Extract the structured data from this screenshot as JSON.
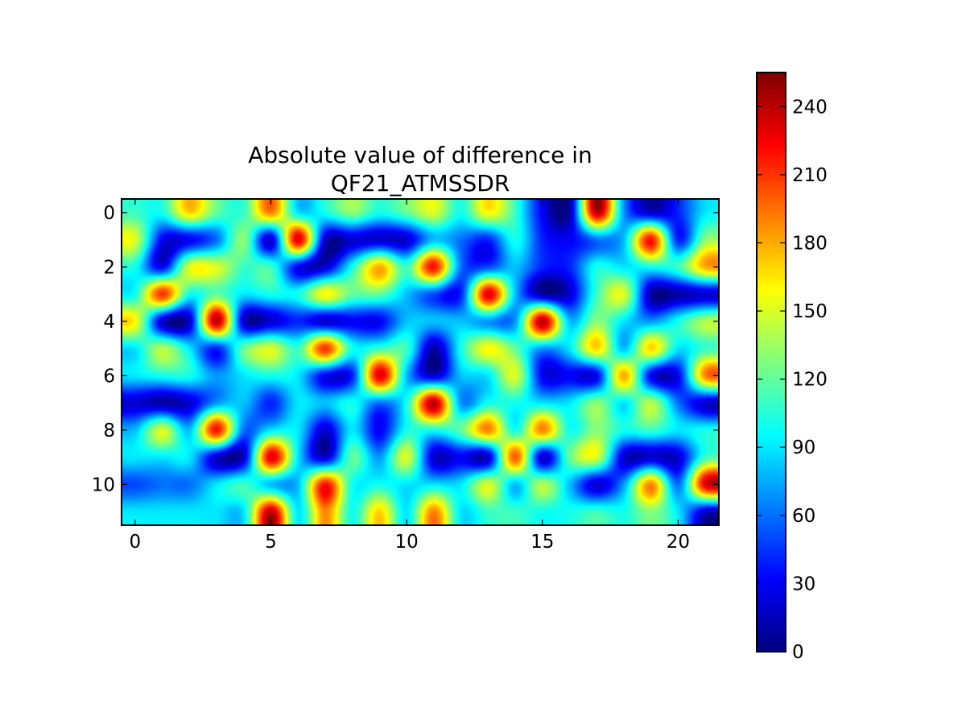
{
  "chart_data": {
    "type": "heatmap",
    "title_lines": [
      "Absolute value of difference in",
      "QF21_ATMSSDR"
    ],
    "xlabel": "",
    "ylabel": "",
    "xlim": [
      -0.5,
      21.5
    ],
    "ylim": [
      11.5,
      -0.5
    ],
    "x_ticks": [
      0,
      5,
      10,
      15,
      20
    ],
    "y_ticks": [
      0,
      2,
      4,
      6,
      8,
      10
    ],
    "colormap": "jet",
    "interpolation": "bicubic",
    "colorbar": {
      "range": [
        0,
        255
      ],
      "ticks": [
        0,
        30,
        60,
        90,
        120,
        150,
        180,
        210,
        240
      ]
    },
    "rows": 12,
    "cols": 22,
    "values": [
      [
        110,
        100,
        170,
        120,
        110,
        190,
        90,
        100,
        130,
        100,
        120,
        150,
        100,
        160,
        110,
        30,
        10,
        240,
        70,
        20,
        40,
        90
      ],
      [
        150,
        30,
        30,
        60,
        130,
        20,
        230,
        20,
        20,
        20,
        20,
        80,
        60,
        40,
        100,
        40,
        30,
        60,
        80,
        220,
        40,
        130
      ],
      [
        100,
        30,
        150,
        150,
        110,
        110,
        30,
        20,
        100,
        180,
        110,
        220,
        60,
        50,
        80,
        40,
        40,
        100,
        90,
        100,
        110,
        180
      ],
      [
        100,
        210,
        100,
        120,
        90,
        100,
        100,
        160,
        120,
        120,
        80,
        50,
        40,
        230,
        80,
        10,
        20,
        110,
        150,
        10,
        10,
        20
      ],
      [
        160,
        20,
        20,
        240,
        20,
        20,
        40,
        20,
        30,
        30,
        80,
        80,
        80,
        70,
        70,
        240,
        80,
        130,
        90,
        70,
        100,
        140
      ],
      [
        90,
        140,
        90,
        40,
        120,
        150,
        110,
        210,
        100,
        110,
        110,
        10,
        100,
        160,
        120,
        70,
        90,
        170,
        80,
        170,
        90,
        110
      ],
      [
        90,
        100,
        100,
        70,
        90,
        100,
        90,
        30,
        40,
        230,
        80,
        20,
        80,
        90,
        150,
        30,
        30,
        30,
        180,
        30,
        30,
        190
      ],
      [
        20,
        10,
        20,
        70,
        80,
        40,
        90,
        80,
        100,
        60,
        100,
        240,
        70,
        100,
        100,
        90,
        90,
        130,
        90,
        140,
        60,
        20
      ],
      [
        80,
        150,
        80,
        220,
        60,
        90,
        90,
        20,
        90,
        30,
        100,
        100,
        120,
        190,
        100,
        190,
        100,
        130,
        100,
        110,
        90,
        100
      ],
      [
        90,
        90,
        90,
        20,
        20,
        230,
        90,
        20,
        120,
        70,
        150,
        20,
        30,
        20,
        200,
        20,
        120,
        150,
        20,
        20,
        20,
        110
      ],
      [
        50,
        60,
        60,
        90,
        110,
        80,
        80,
        220,
        100,
        100,
        90,
        90,
        90,
        150,
        80,
        140,
        80,
        20,
        70,
        190,
        60,
        230
      ],
      [
        90,
        90,
        90,
        90,
        90,
        240,
        90,
        190,
        100,
        170,
        90,
        190,
        90,
        110,
        110,
        100,
        100,
        110,
        100,
        130,
        90,
        20
      ]
    ]
  }
}
